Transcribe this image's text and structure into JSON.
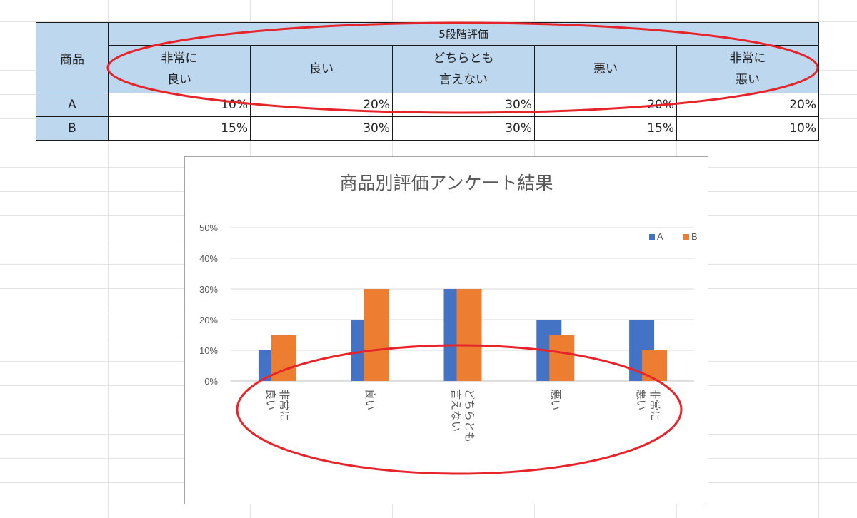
{
  "table": {
    "product_header": "商品",
    "group_header": "5段階評価",
    "levels": [
      [
        "非常に",
        "良い"
      ],
      [
        "良い"
      ],
      [
        "どちらとも",
        "言えない"
      ],
      [
        "悪い"
      ],
      [
        "非常に",
        "悪い"
      ]
    ],
    "rows": [
      {
        "product": "A",
        "values": [
          "10%",
          "20%",
          "30%",
          "20%",
          "20%"
        ]
      },
      {
        "product": "B",
        "values": [
          "15%",
          "30%",
          "30%",
          "15%",
          "10%"
        ]
      }
    ]
  },
  "chart_data": {
    "type": "bar",
    "title": "商品別評価アンケート結果",
    "categories": [
      [
        "非常に",
        "良い"
      ],
      [
        "良い"
      ],
      [
        "どちらとも",
        "言えない"
      ],
      [
        "悪い"
      ],
      [
        "非常に",
        "悪い"
      ]
    ],
    "series": [
      {
        "name": "A",
        "color": "#4472c4",
        "values": [
          0.1,
          0.2,
          0.3,
          0.2,
          0.2
        ]
      },
      {
        "name": "B",
        "color": "#ed7d31",
        "values": [
          0.15,
          0.3,
          0.3,
          0.15,
          0.1
        ]
      }
    ],
    "ylim": [
      0,
      0.5
    ],
    "yticks": [
      "0%",
      "10%",
      "20%",
      "30%",
      "40%",
      "50%"
    ],
    "grid": true,
    "legend": "top-right",
    "category_label_orientation": "vertical"
  },
  "colors": {
    "header_fill": "#bdd7ee",
    "annotation": "#e8242b"
  }
}
